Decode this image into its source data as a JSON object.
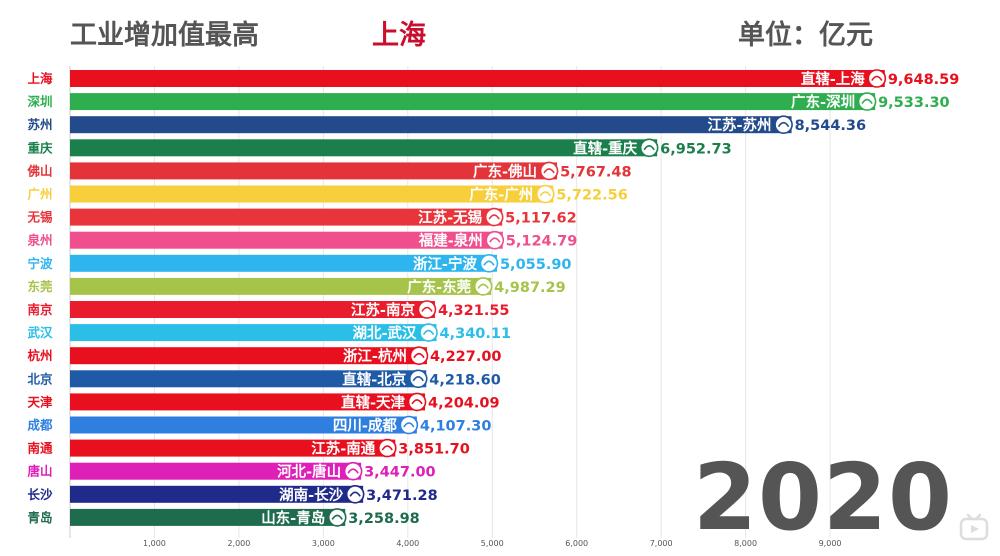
{
  "header": {
    "title": "工业增加值最高",
    "leader": "上海",
    "unit": "单位：亿元"
  },
  "year": "2020",
  "chart_data": {
    "type": "bar",
    "orientation": "horizontal",
    "title": "工业增加值最高",
    "unit": "单位：亿元",
    "year": "2020",
    "xlim": [
      0,
      10000
    ],
    "xticks": [
      1000,
      2000,
      3000,
      4000,
      5000,
      6000,
      7000,
      8000,
      9000
    ],
    "xtick_labels": [
      "1,000",
      "2,000",
      "3,000",
      "4,000",
      "5,000",
      "6,000",
      "7,000",
      "8,000",
      "9,000"
    ],
    "grid": true,
    "bars": [
      {
        "city": "上海",
        "tag": "直辖-上海",
        "value": 9648.59,
        "value_label": "9,648.59",
        "color": "#e8101f"
      },
      {
        "city": "深圳",
        "tag": "广东-深圳",
        "value": 9533.3,
        "value_label": "9,533.30",
        "color": "#2fae4f"
      },
      {
        "city": "苏州",
        "tag": "江苏-苏州",
        "value": 8544.36,
        "value_label": "8,544.36",
        "color": "#234a8a"
      },
      {
        "city": "重庆",
        "tag": "直辖-重庆",
        "value": 6952.73,
        "value_label": "6,952.73",
        "color": "#1a7f4b"
      },
      {
        "city": "佛山",
        "tag": "广东-佛山",
        "value": 5767.48,
        "value_label": "5,767.48",
        "color": "#e3343a"
      },
      {
        "city": "广州",
        "tag": "广东-广州",
        "value": 5722.56,
        "value_label": "5,722.56",
        "color": "#f7cf3a"
      },
      {
        "city": "无锡",
        "tag": "江苏-无锡",
        "value": 5117.62,
        "value_label": "5,117.62",
        "color": "#e8353c"
      },
      {
        "city": "泉州",
        "tag": "福建-泉州",
        "value": 5124.79,
        "value_label": "5,124.79",
        "color": "#ef4f8c"
      },
      {
        "city": "宁波",
        "tag": "浙江-宁波",
        "value": 5055.9,
        "value_label": "5,055.90",
        "color": "#2fb5ee"
      },
      {
        "city": "东莞",
        "tag": "广东-东莞",
        "value": 4987.29,
        "value_label": "4,987.29",
        "color": "#a6c44a"
      },
      {
        "city": "南京",
        "tag": "江苏-南京",
        "value": 4321.55,
        "value_label": "4,321.55",
        "color": "#e81c2c"
      },
      {
        "city": "武汉",
        "tag": "湖北-武汉",
        "value": 4340.11,
        "value_label": "4,340.11",
        "color": "#2bbfe8"
      },
      {
        "city": "杭州",
        "tag": "浙江-杭州",
        "value": 4227.0,
        "value_label": "4,227.00",
        "color": "#e8101f"
      },
      {
        "city": "北京",
        "tag": "直辖-北京",
        "value": 4218.6,
        "value_label": "4,218.60",
        "color": "#1f5aa6"
      },
      {
        "city": "天津",
        "tag": "直辖-天津",
        "value": 4204.09,
        "value_label": "4,204.09",
        "color": "#e8101f"
      },
      {
        "city": "成都",
        "tag": "四川-成都",
        "value": 4107.3,
        "value_label": "4,107.30",
        "color": "#2f7fe0"
      },
      {
        "city": "南通",
        "tag": "江苏-南通",
        "value": 3851.7,
        "value_label": "3,851.70",
        "color": "#e8101f"
      },
      {
        "city": "唐山",
        "tag": "河北-唐山",
        "value": 3447.0,
        "value_label": "3,447.00",
        "color": "#de1fb8"
      },
      {
        "city": "长沙",
        "tag": "湖南-长沙",
        "value": 3471.28,
        "value_label": "3,471.28",
        "color": "#1f2a8a"
      },
      {
        "city": "青岛",
        "tag": "山东-青岛",
        "value": 3258.98,
        "value_label": "3,258.98",
        "color": "#1e6b4e"
      }
    ]
  }
}
